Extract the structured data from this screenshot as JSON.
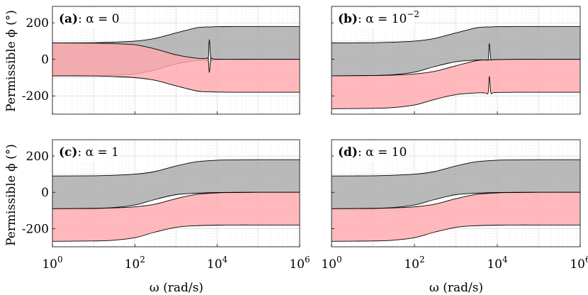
{
  "figure": {
    "ylabel": "Permissible ϕ (°)",
    "xlabel": "ω (rad/s)"
  },
  "chart_data": [
    {
      "type": "area",
      "panel": "a",
      "title_bold": "(a)",
      "title_rest": ":  α = 0",
      "xscale": "log",
      "xlim": [
        1,
        1000000
      ],
      "ylim": [
        -300,
        290
      ],
      "xticks": [
        "10^0",
        "10^2",
        "10^4",
        "10^6"
      ],
      "yticks": [
        200,
        0,
        -200
      ],
      "grid": true,
      "series": [
        {
          "name": "gray band",
          "color": "#a9a9a9",
          "x": [
            1,
            10,
            30,
            100,
            300,
            1000,
            3000,
            5000,
            6000,
            6400,
            7000,
            8000,
            10000,
            30000,
            100000,
            1000000
          ],
          "upper": [
            90,
            91,
            94,
            100,
            114,
            145,
            172,
            177,
            177,
            177,
            178,
            178,
            179,
            180,
            180,
            180
          ],
          "lower": [
            -90,
            -89,
            -86,
            -80,
            -58,
            -25,
            -7,
            -4,
            -3,
            108,
            -2,
            -2,
            -1,
            0,
            0,
            0
          ]
        },
        {
          "name": "red band",
          "color": "#ffaaaf",
          "x": [
            1,
            10,
            30,
            100,
            300,
            1000,
            3000,
            5000,
            6000,
            6400,
            7000,
            8000,
            10000,
            30000,
            100000,
            1000000
          ],
          "upper": [
            90,
            89,
            86,
            80,
            58,
            25,
            7,
            4,
            3,
            -72,
            2,
            2,
            1,
            0,
            0,
            0
          ],
          "lower": [
            -90,
            -91,
            -94,
            -100,
            -114,
            -145,
            -172,
            -177,
            -177,
            -177,
            -178,
            -178,
            -179,
            -180,
            -180,
            -180
          ]
        }
      ]
    },
    {
      "type": "area",
      "panel": "b",
      "title_bold": "(b)",
      "title_rest": ":  α = 10",
      "title_sup": "−2",
      "xscale": "log",
      "xlim": [
        1,
        1000000
      ],
      "ylim": [
        -300,
        290
      ],
      "xticks": [
        "10^0",
        "10^2",
        "10^4",
        "10^6"
      ],
      "yticks": [
        200,
        0,
        -200
      ],
      "grid": true,
      "series": [
        {
          "name": "gray band",
          "color": "#a9a9a9",
          "x": [
            1,
            10,
            30,
            100,
            300,
            1000,
            3000,
            5000,
            6000,
            6400,
            7000,
            8000,
            10000,
            30000,
            100000,
            1000000
          ],
          "upper": [
            90,
            91,
            94,
            100,
            114,
            145,
            172,
            177,
            177,
            177,
            178,
            178,
            179,
            180,
            180,
            180
          ],
          "lower": [
            -90,
            -88,
            -84,
            -70,
            -40,
            -13,
            -4,
            -3,
            -3,
            88,
            -2,
            -2,
            -1,
            0,
            0,
            0
          ]
        },
        {
          "name": "red band",
          "color": "#ffaaaf",
          "x": [
            1,
            10,
            30,
            100,
            300,
            1000,
            3000,
            5000,
            6000,
            6400,
            7000,
            8000,
            10000,
            30000,
            100000,
            1000000
          ],
          "upper": [
            -90,
            -89,
            -86,
            -80,
            -66,
            -35,
            -8,
            -3,
            -3,
            -3,
            -2,
            -2,
            -1,
            0,
            0,
            0
          ],
          "lower": [
            -270,
            -268,
            -264,
            -250,
            -220,
            -193,
            -184,
            -183,
            -183,
            -92,
            -182,
            -182,
            -181,
            -180,
            -180,
            -180
          ]
        }
      ]
    },
    {
      "type": "area",
      "panel": "c",
      "title_bold": "(c)",
      "title_rest": ":  α = 1",
      "xscale": "log",
      "xlim": [
        1,
        1000000
      ],
      "ylim": [
        -300,
        290
      ],
      "xticks": [
        "10^0",
        "10^2",
        "10^4",
        "10^6"
      ],
      "yticks": [
        200,
        0,
        -200
      ],
      "grid": true,
      "series": [
        {
          "name": "gray band",
          "color": "#a9a9a9",
          "x": [
            1,
            10,
            30,
            100,
            300,
            1000,
            3000,
            10000,
            30000,
            100000,
            1000000
          ],
          "upper": [
            90,
            91,
            94,
            100,
            114,
            145,
            168,
            177,
            179,
            180,
            180
          ],
          "lower": [
            -90,
            -88,
            -84,
            -70,
            -40,
            -13,
            -5,
            -1,
            0,
            0,
            0
          ]
        },
        {
          "name": "red band",
          "color": "#ffaaaf",
          "x": [
            1,
            10,
            30,
            100,
            300,
            1000,
            3000,
            10000,
            30000,
            100000,
            1000000
          ],
          "upper": [
            -90,
            -89,
            -86,
            -80,
            -66,
            -35,
            -12,
            -3,
            -1,
            0,
            0
          ],
          "lower": [
            -270,
            -268,
            -264,
            -250,
            -220,
            -193,
            -184,
            -181,
            -180,
            -180,
            -180
          ]
        }
      ]
    },
    {
      "type": "area",
      "panel": "d",
      "title_bold": "(d)",
      "title_rest": ":  α = 10",
      "xscale": "log",
      "xlim": [
        1,
        1000000
      ],
      "ylim": [
        -300,
        290
      ],
      "xticks": [
        "10^0",
        "10^2",
        "10^4",
        "10^6"
      ],
      "yticks": [
        200,
        0,
        -200
      ],
      "grid": true,
      "series": [
        {
          "name": "gray band",
          "color": "#a9a9a9",
          "x": [
            1,
            10,
            30,
            100,
            300,
            1000,
            3000,
            10000,
            30000,
            100000,
            1000000
          ],
          "upper": [
            90,
            91,
            94,
            100,
            114,
            145,
            168,
            177,
            179,
            180,
            180
          ],
          "lower": [
            -90,
            -88,
            -84,
            -70,
            -40,
            -13,
            -5,
            -1,
            0,
            0,
            0
          ]
        },
        {
          "name": "red band",
          "color": "#ffaaaf",
          "x": [
            1,
            10,
            30,
            100,
            300,
            1000,
            3000,
            10000,
            30000,
            100000,
            1000000
          ],
          "upper": [
            -90,
            -89,
            -86,
            -80,
            -66,
            -35,
            -12,
            -3,
            -1,
            0,
            0
          ],
          "lower": [
            -270,
            -268,
            -264,
            -250,
            -220,
            -193,
            -184,
            -181,
            -180,
            -180,
            -180
          ]
        }
      ]
    }
  ]
}
